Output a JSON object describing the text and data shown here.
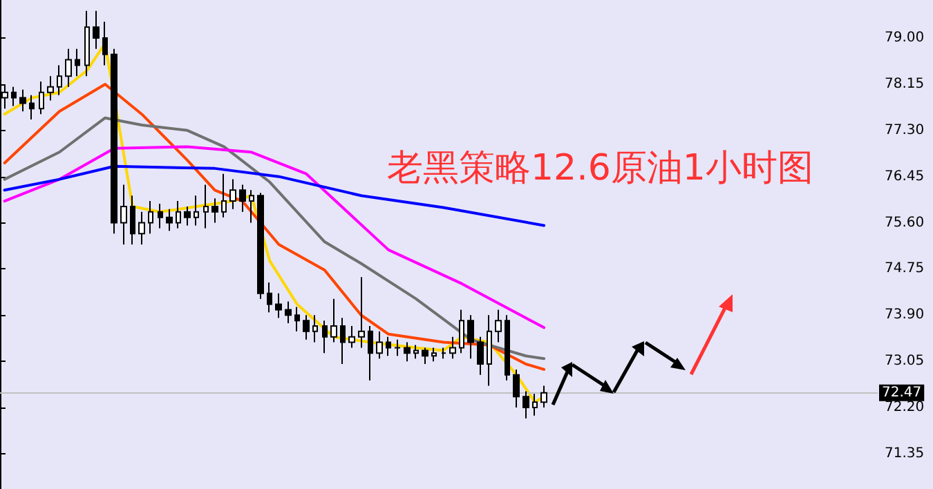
{
  "chart_data": {
    "type": "candlestick",
    "title": "老黑策略12.6原油1小时图",
    "categories": [
      null,
      null,
      null,
      null,
      null,
      null,
      null,
      null,
      null,
      null,
      null,
      null,
      null,
      null,
      null,
      null,
      null,
      null,
      null,
      null,
      null,
      null,
      null,
      null,
      null,
      null,
      null,
      null,
      null,
      null,
      null,
      null,
      null,
      null,
      null,
      null,
      null,
      null,
      null,
      null,
      null,
      null,
      null,
      null,
      null,
      null,
      null,
      null,
      null,
      null,
      null,
      null,
      null,
      null,
      null,
      null,
      null,
      null,
      null,
      null,
      null,
      null,
      null,
      null,
      null,
      null,
      null,
      null,
      null,
      null,
      null,
      null,
      null,
      null,
      null,
      null,
      null,
      null,
      null,
      null,
      null,
      null,
      null,
      null,
      null,
      null,
      null,
      null,
      null,
      null,
      null,
      null,
      null,
      null,
      null,
      null
    ],
    "ohlc": [
      [
        77.9,
        78.15,
        77.7,
        78.0
      ],
      [
        78.0,
        78.1,
        77.75,
        77.9
      ],
      [
        77.9,
        78.05,
        77.65,
        77.8
      ],
      [
        77.8,
        77.95,
        77.5,
        77.7
      ],
      [
        77.7,
        78.2,
        77.6,
        78.0
      ],
      [
        78.0,
        78.3,
        77.85,
        78.1
      ],
      [
        78.1,
        78.5,
        77.95,
        78.3
      ],
      [
        78.3,
        78.8,
        78.1,
        78.6
      ],
      [
        78.6,
        78.8,
        78.3,
        78.5
      ],
      [
        78.5,
        79.5,
        78.3,
        79.2
      ],
      [
        79.2,
        79.5,
        78.8,
        79.0
      ],
      [
        79.0,
        79.3,
        78.5,
        78.7
      ],
      [
        78.7,
        78.8,
        75.4,
        75.6
      ],
      [
        75.6,
        76.3,
        75.2,
        75.9
      ],
      [
        75.9,
        76.1,
        75.2,
        75.4
      ],
      [
        75.4,
        75.8,
        75.2,
        75.6
      ],
      [
        75.6,
        76.0,
        75.4,
        75.8
      ],
      [
        75.8,
        75.95,
        75.5,
        75.7
      ],
      [
        75.7,
        75.85,
        75.45,
        75.6
      ],
      [
        75.6,
        76.0,
        75.5,
        75.8
      ],
      [
        75.8,
        75.9,
        75.55,
        75.7
      ],
      [
        75.7,
        76.1,
        75.55,
        75.8
      ],
      [
        75.8,
        76.3,
        75.5,
        75.9
      ],
      [
        75.9,
        76.05,
        75.6,
        75.8
      ],
      [
        75.8,
        76.5,
        75.7,
        76.0
      ],
      [
        76.0,
        76.4,
        75.85,
        76.2
      ],
      [
        76.2,
        76.3,
        75.8,
        76.0
      ],
      [
        76.0,
        76.2,
        75.6,
        76.1
      ],
      [
        76.1,
        76.15,
        74.2,
        74.3
      ],
      [
        74.3,
        74.5,
        73.95,
        74.1
      ],
      [
        74.1,
        74.3,
        73.85,
        74.0
      ],
      [
        74.0,
        74.15,
        73.75,
        73.9
      ],
      [
        73.9,
        74.05,
        73.6,
        73.8
      ],
      [
        73.8,
        73.9,
        73.45,
        73.6
      ],
      [
        73.6,
        73.9,
        73.4,
        73.7
      ],
      [
        73.7,
        73.8,
        73.2,
        73.5
      ],
      [
        73.5,
        74.2,
        73.4,
        73.7
      ],
      [
        73.7,
        73.85,
        73.0,
        73.4
      ],
      [
        73.4,
        73.7,
        73.3,
        73.5
      ],
      [
        73.5,
        74.6,
        73.3,
        73.6
      ],
      [
        73.6,
        73.7,
        72.7,
        73.2
      ],
      [
        73.2,
        73.6,
        73.1,
        73.4
      ],
      [
        73.4,
        73.5,
        73.15,
        73.3
      ],
      [
        73.3,
        73.45,
        73.15,
        73.3
      ],
      [
        73.3,
        73.4,
        73.05,
        73.2
      ],
      [
        73.2,
        73.35,
        73.1,
        73.25
      ],
      [
        73.25,
        73.3,
        73.0,
        73.15
      ],
      [
        73.15,
        73.3,
        73.05,
        73.2
      ],
      [
        73.2,
        73.3,
        73.1,
        73.2
      ],
      [
        73.2,
        73.5,
        73.1,
        73.3
      ],
      [
        73.3,
        74.0,
        73.2,
        73.8
      ],
      [
        73.8,
        73.9,
        73.1,
        73.4
      ],
      [
        73.4,
        73.5,
        72.8,
        73.0
      ],
      [
        73.0,
        73.9,
        72.6,
        73.6
      ],
      [
        73.6,
        74.0,
        73.4,
        73.8
      ],
      [
        73.8,
        73.9,
        72.7,
        72.8
      ],
      [
        72.8,
        72.9,
        72.2,
        72.4
      ],
      [
        72.4,
        72.5,
        72.0,
        72.2
      ],
      [
        72.2,
        72.45,
        72.05,
        72.3
      ],
      [
        72.3,
        72.6,
        72.2,
        72.47
      ],
      null,
      null,
      null,
      null,
      null,
      null,
      null,
      null,
      null,
      null,
      null,
      null,
      null,
      null,
      null,
      null,
      null,
      null,
      null,
      null,
      null,
      null,
      null,
      null,
      null,
      null,
      null,
      null,
      null,
      null,
      null,
      null,
      null,
      null,
      null,
      null
    ],
    "series": [
      {
        "type": "line",
        "color": "#ffd700",
        "values": [
          77.6,
          null,
          null,
          77.9,
          null,
          null,
          78.0,
          null,
          null,
          78.4,
          null,
          78.9,
          null,
          null,
          75.9,
          null,
          null,
          75.8,
          null,
          null,
          null,
          75.9,
          null,
          null,
          null,
          76.0,
          null,
          76.1,
          null,
          74.9,
          null,
          null,
          74.1,
          null,
          null,
          null,
          73.5,
          null,
          null,
          null,
          73.4,
          null,
          null,
          null,
          null,
          73.3,
          null,
          null,
          73.25,
          null,
          73.5,
          null,
          null,
          73.4,
          null,
          null,
          72.8,
          null,
          72.3,
          72.4,
          null,
          null,
          null,
          null,
          null,
          null,
          null,
          null,
          null,
          null,
          null,
          null,
          null,
          null,
          null,
          null,
          null,
          null,
          null,
          null,
          null,
          null,
          null,
          null,
          null,
          null,
          null,
          null,
          null,
          null,
          null,
          null,
          null,
          null,
          null,
          null
        ]
      },
      {
        "type": "line",
        "color": "#ff4500",
        "values": [
          76.7,
          null,
          null,
          null,
          null,
          null,
          77.65,
          null,
          null,
          null,
          null,
          78.15,
          null,
          null,
          null,
          77.6,
          null,
          null,
          null,
          null,
          76.75,
          null,
          null,
          76.2,
          null,
          null,
          76.0,
          null,
          null,
          null,
          75.2,
          null,
          null,
          null,
          null,
          74.73,
          null,
          null,
          null,
          73.9,
          null,
          null,
          73.55,
          null,
          null,
          null,
          null,
          null,
          73.4,
          null,
          null,
          null,
          null,
          73.35,
          null,
          null,
          null,
          73.0,
          null,
          72.9,
          null,
          null,
          null,
          null,
          null,
          null,
          null,
          null,
          null,
          null,
          null,
          null,
          null,
          null,
          null,
          null,
          null,
          null,
          null,
          null,
          null,
          null,
          null,
          null,
          null,
          null,
          null,
          null,
          null,
          null,
          null,
          null,
          null,
          null,
          null,
          null
        ]
      },
      {
        "type": "line",
        "color": "#707070",
        "values": [
          76.4,
          null,
          null,
          null,
          null,
          null,
          76.9,
          null,
          null,
          null,
          null,
          77.53,
          null,
          null,
          null,
          77.4,
          null,
          null,
          null,
          null,
          77.3,
          null,
          null,
          null,
          77.0,
          null,
          null,
          null,
          null,
          76.35,
          null,
          null,
          null,
          null,
          null,
          75.25,
          null,
          null,
          null,
          74.85,
          null,
          null,
          null,
          null,
          null,
          74.2,
          null,
          null,
          null,
          null,
          null,
          73.45,
          null,
          null,
          null,
          null,
          null,
          73.15,
          null,
          73.1,
          null,
          null,
          null,
          null,
          null,
          null,
          null,
          null,
          null,
          null,
          null,
          null,
          null,
          null,
          null,
          null,
          null,
          null,
          null,
          null,
          null,
          null,
          null,
          null,
          null,
          null,
          null,
          null,
          null,
          null,
          null,
          null,
          null,
          null,
          null,
          null
        ]
      },
      {
        "type": "line",
        "color": "#ff00ff",
        "values": [
          76.0,
          null,
          null,
          null,
          null,
          null,
          76.4,
          null,
          null,
          null,
          null,
          null,
          76.97,
          null,
          null,
          null,
          null,
          null,
          null,
          null,
          77.0,
          null,
          null,
          null,
          null,
          null,
          null,
          76.9,
          null,
          null,
          null,
          null,
          null,
          76.5,
          null,
          null,
          null,
          null,
          null,
          null,
          null,
          null,
          75.1,
          null,
          null,
          null,
          null,
          null,
          null,
          null,
          74.48,
          null,
          null,
          null,
          null,
          null,
          null,
          null,
          null,
          73.67,
          null,
          null,
          null,
          null,
          null,
          null,
          null,
          null,
          null,
          null,
          null,
          null,
          null,
          null,
          null,
          null,
          null,
          null,
          null,
          null,
          null,
          null,
          null,
          null,
          null,
          null,
          null,
          null,
          null,
          null,
          null,
          null,
          null,
          null,
          null,
          null
        ]
      },
      {
        "type": "line",
        "color": "#0000ff",
        "values": [
          76.2,
          null,
          null,
          null,
          null,
          null,
          76.4,
          null,
          null,
          null,
          null,
          null,
          76.64,
          null,
          null,
          null,
          null,
          null,
          null,
          null,
          null,
          null,
          null,
          76.6,
          null,
          null,
          null,
          null,
          null,
          null,
          76.45,
          null,
          null,
          null,
          null,
          null,
          null,
          null,
          null,
          76.1,
          null,
          null,
          null,
          null,
          null,
          null,
          null,
          null,
          75.88,
          null,
          null,
          null,
          null,
          null,
          null,
          null,
          null,
          null,
          null,
          75.55,
          null,
          null,
          null,
          null,
          null,
          null,
          null,
          null,
          null,
          null,
          null,
          null,
          null,
          null,
          null,
          null,
          null,
          null,
          null,
          null,
          null,
          null,
          null,
          null,
          null,
          null,
          null,
          null,
          null,
          null,
          null,
          null,
          null,
          null,
          null,
          null
        ]
      }
    ],
    "ylim": [
      70.7,
      79.7
    ],
    "yticks": [
      {
        "value": 71.35,
        "label": "71.35"
      },
      {
        "value": 72.2,
        "label": "72.20"
      },
      {
        "value": 73.05,
        "label": "73.05"
      },
      {
        "value": 73.9,
        "label": "73.90"
      },
      {
        "value": 74.75,
        "label": "74.75"
      },
      {
        "value": 75.6,
        "label": "75.60"
      },
      {
        "value": 76.45,
        "label": "76.45"
      },
      {
        "value": 77.3,
        "label": "77.30"
      },
      {
        "value": 78.15,
        "label": "78.15"
      },
      {
        "value": 79,
        "label": "79.00"
      }
    ],
    "ref_lines": [
      {
        "axis": "y",
        "value": 72.47,
        "label": "72.47",
        "color": "#c0c0c0"
      }
    ],
    "tick_labels": "y",
    "grid": false,
    "line_style": "solid"
  }
}
